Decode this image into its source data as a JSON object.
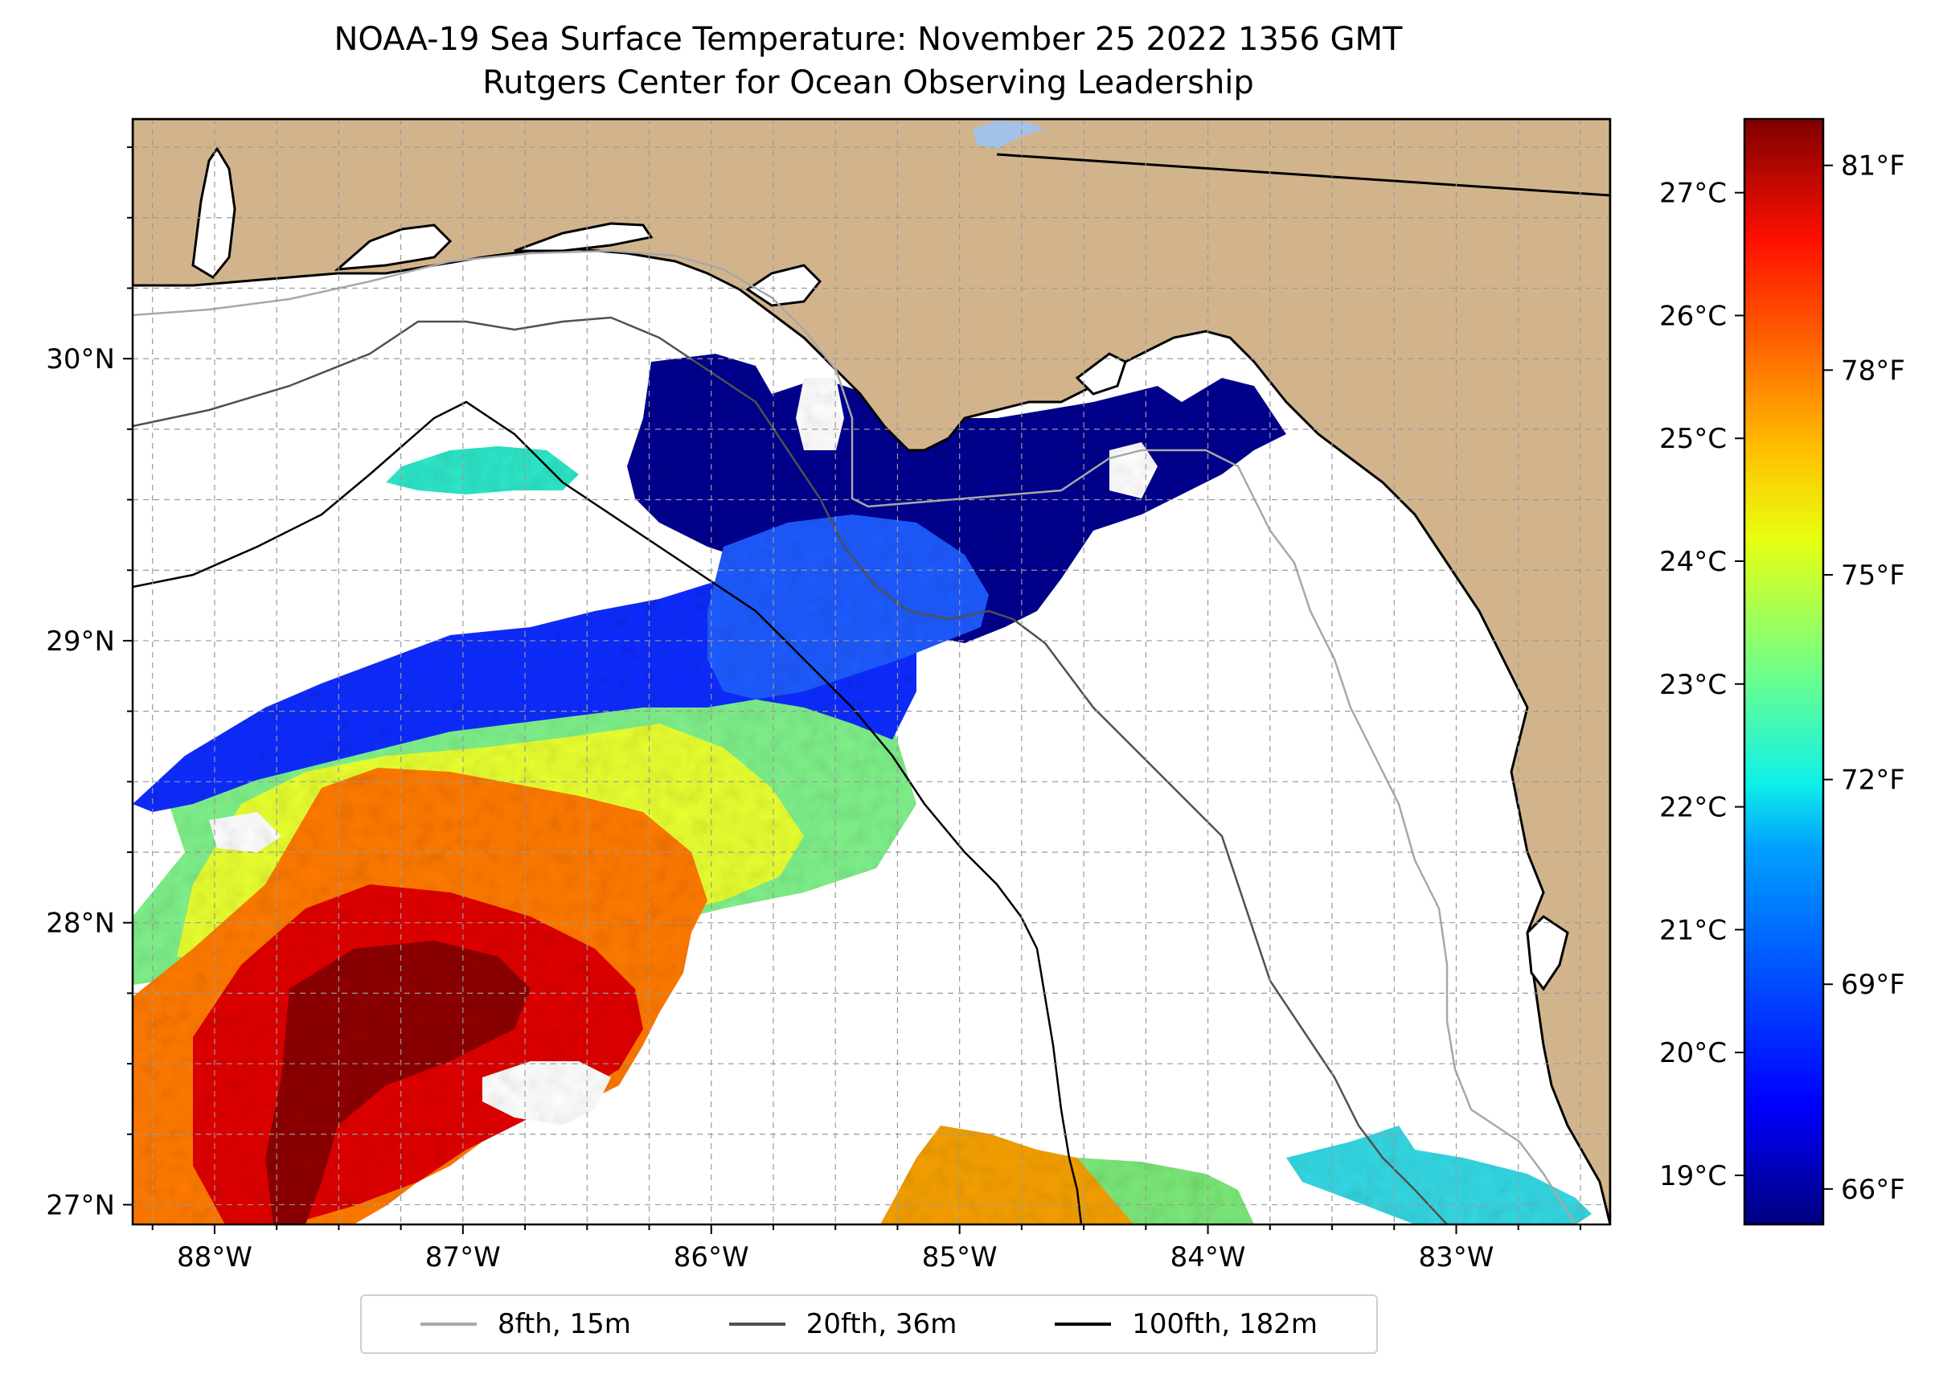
{
  "title": {
    "line1": "NOAA-19 Sea Surface Temperature: November 25 2022 1356 GMT",
    "line2": "Rutgers Center for Ocean Observing Leadership"
  },
  "map": {
    "lon_range": [
      -88.33,
      -82.38
    ],
    "lat_range": [
      26.93,
      30.85
    ],
    "lon_ticks": [
      {
        "value": -88,
        "label": "88°W"
      },
      {
        "value": -87,
        "label": "87°W"
      },
      {
        "value": -86,
        "label": "86°W"
      },
      {
        "value": -85,
        "label": "85°W"
      },
      {
        "value": -84,
        "label": "84°W"
      },
      {
        "value": -83,
        "label": "83°W"
      }
    ],
    "lat_ticks": [
      {
        "value": 27,
        "label": "27°N"
      },
      {
        "value": 28,
        "label": "28°N"
      },
      {
        "value": 29,
        "label": "29°N"
      },
      {
        "value": 30,
        "label": "30°N"
      }
    ],
    "grid": true,
    "land_color": "#d2b48c",
    "no_data_color": "#ffffff",
    "lake_color": "#a4c2e6"
  },
  "colorbar": {
    "colormap": "jet",
    "celsius_ticks": [
      {
        "value": 19,
        "label": "19°C"
      },
      {
        "value": 20,
        "label": "20°C"
      },
      {
        "value": 21,
        "label": "21°C"
      },
      {
        "value": 22,
        "label": "22°C"
      },
      {
        "value": 23,
        "label": "23°C"
      },
      {
        "value": 24,
        "label": "24°C"
      },
      {
        "value": 25,
        "label": "25°C"
      },
      {
        "value": 26,
        "label": "26°C"
      },
      {
        "value": 27,
        "label": "27°C"
      }
    ],
    "fahrenheit_ticks": [
      {
        "value": 66,
        "label": "66°F"
      },
      {
        "value": 69,
        "label": "69°F"
      },
      {
        "value": 72,
        "label": "72°F"
      },
      {
        "value": 75,
        "label": "75°F"
      },
      {
        "value": 78,
        "label": "78°F"
      },
      {
        "value": 81,
        "label": "81°F"
      }
    ],
    "range_celsius": [
      18.6,
      27.6
    ]
  },
  "legend": {
    "placement": "bottom-center",
    "items": [
      {
        "label": "8fth, 15m",
        "color": "#a8a8a8"
      },
      {
        "label": "20fth, 36m",
        "color": "#505050"
      },
      {
        "label": "100fth, 182m",
        "color": "#000000"
      }
    ]
  }
}
